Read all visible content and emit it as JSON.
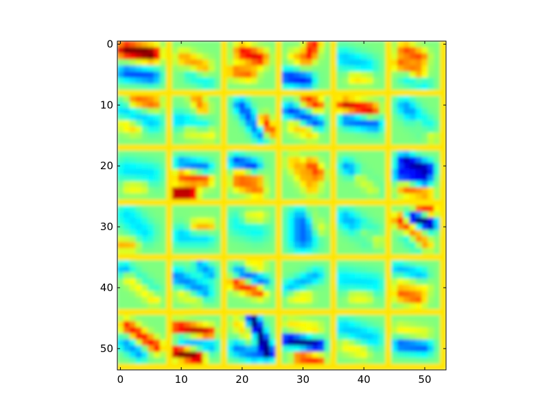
{
  "chart_data": {
    "type": "heatmap",
    "title": "",
    "xlabel": "",
    "ylabel": "",
    "xlim": [
      -0.5,
      53.5
    ],
    "ylim": [
      53.5,
      -0.5
    ],
    "origin": "upper",
    "grid": false,
    "colormap": "jet",
    "color_range": [
      -1,
      1
    ],
    "x_ticks": [
      0,
      10,
      20,
      30,
      40,
      50
    ],
    "y_ticks": [
      0,
      10,
      20,
      30,
      40,
      50
    ],
    "x_tick_labels": [
      "0",
      "10",
      "20",
      "30",
      "40",
      "50"
    ],
    "y_tick_labels": [
      "0",
      "10",
      "20",
      "30",
      "40",
      "50"
    ],
    "tiles": {
      "rows": 6,
      "cols": 6,
      "tile_size": 8,
      "padding": 1,
      "padding_value": 0.3,
      "base_value": 0.0
    },
    "features": [
      {
        "r": 0,
        "c": 0,
        "cx": 3.5,
        "cy": 1.8,
        "len": 4.5,
        "ang": -8,
        "sig": 1.0,
        "amp": 1.1
      },
      {
        "r": 0,
        "c": 0,
        "cx": 3.5,
        "cy": 5.5,
        "len": 4.5,
        "ang": -8,
        "sig": 1.0,
        "amp": -0.6
      },
      {
        "r": 0,
        "c": 1,
        "cx": 3.5,
        "cy": 3.5,
        "len": 3.5,
        "ang": -25,
        "sig": 1.0,
        "amp": 0.45
      },
      {
        "r": 0,
        "c": 1,
        "cx": 4.5,
        "cy": 6.2,
        "len": 3.0,
        "ang": -25,
        "sig": 0.9,
        "amp": -0.25
      },
      {
        "r": 0,
        "c": 2,
        "cx": 4.0,
        "cy": 2.3,
        "len": 3.0,
        "ang": -20,
        "sig": 1.0,
        "amp": 0.8
      },
      {
        "r": 0,
        "c": 2,
        "cx": 2.5,
        "cy": 5.2,
        "len": 2.5,
        "ang": -10,
        "sig": 0.9,
        "amp": 0.55
      },
      {
        "r": 0,
        "c": 3,
        "cx": 5.0,
        "cy": 1.0,
        "len": 2.0,
        "ang": 70,
        "sig": 0.9,
        "amp": 0.75
      },
      {
        "r": 0,
        "c": 3,
        "cx": 2.5,
        "cy": 6.2,
        "len": 3.0,
        "ang": -10,
        "sig": 1.0,
        "amp": -0.7
      },
      {
        "r": 0,
        "c": 3,
        "cx": 3.0,
        "cy": 3.0,
        "len": 2.0,
        "ang": -30,
        "sig": 0.8,
        "amp": 0.35
      },
      {
        "r": 0,
        "c": 4,
        "cx": 3.0,
        "cy": 3.5,
        "len": 4.0,
        "ang": -20,
        "sig": 1.3,
        "amp": -0.35
      },
      {
        "r": 0,
        "c": 4,
        "cx": 4.0,
        "cy": 6.0,
        "len": 2.0,
        "ang": 0,
        "sig": 0.8,
        "amp": 0.4
      },
      {
        "r": 0,
        "c": 5,
        "cx": 3.5,
        "cy": 2.0,
        "len": 3.0,
        "ang": -25,
        "sig": 0.9,
        "amp": 0.6
      },
      {
        "r": 0,
        "c": 5,
        "cx": 3.0,
        "cy": 4.5,
        "len": 3.5,
        "ang": -25,
        "sig": 0.9,
        "amp": 0.55
      },
      {
        "r": 0,
        "c": 5,
        "cx": 4.0,
        "cy": 6.5,
        "len": 3.0,
        "ang": -20,
        "sig": 0.9,
        "amp": -0.3
      },
      {
        "r": 1,
        "c": 0,
        "cx": 4.5,
        "cy": 1.0,
        "len": 3.0,
        "ang": -10,
        "sig": 0.9,
        "amp": 0.6
      },
      {
        "r": 1,
        "c": 0,
        "cx": 3.5,
        "cy": 3.5,
        "len": 5.0,
        "ang": -20,
        "sig": 1.2,
        "amp": -0.35
      },
      {
        "r": 1,
        "c": 0,
        "cx": 2.0,
        "cy": 5.0,
        "len": 2.0,
        "ang": -20,
        "sig": 0.8,
        "amp": 0.4
      },
      {
        "r": 1,
        "c": 1,
        "cx": 4.5,
        "cy": 1.2,
        "len": 2.0,
        "ang": -60,
        "sig": 0.8,
        "amp": 0.5
      },
      {
        "r": 1,
        "c": 1,
        "cx": 3.0,
        "cy": 4.5,
        "len": 4.0,
        "ang": -15,
        "sig": 1.1,
        "amp": -0.35
      },
      {
        "r": 1,
        "c": 1,
        "cx": 4.5,
        "cy": 6.0,
        "len": 3.0,
        "ang": -10,
        "sig": 0.9,
        "amp": 0.35
      },
      {
        "r": 1,
        "c": 2,
        "cx": 4.0,
        "cy": 4.0,
        "len": 6.0,
        "ang": -55,
        "sig": 0.9,
        "amp": -0.6
      },
      {
        "r": 1,
        "c": 2,
        "cx": 6.5,
        "cy": 5.0,
        "len": 2.0,
        "ang": -60,
        "sig": 0.8,
        "amp": 0.8
      },
      {
        "r": 1,
        "c": 3,
        "cx": 3.5,
        "cy": 3.5,
        "len": 5.0,
        "ang": -25,
        "sig": 0.9,
        "amp": -0.65
      },
      {
        "r": 1,
        "c": 3,
        "cx": 5.0,
        "cy": 1.0,
        "len": 2.0,
        "ang": -30,
        "sig": 0.8,
        "amp": 0.7
      },
      {
        "r": 1,
        "c": 3,
        "cx": 3.5,
        "cy": 5.5,
        "len": 3.0,
        "ang": -25,
        "sig": 0.9,
        "amp": 0.4
      },
      {
        "r": 1,
        "c": 4,
        "cx": 3.5,
        "cy": 2.0,
        "len": 4.5,
        "ang": -10,
        "sig": 0.9,
        "amp": 0.9
      },
      {
        "r": 1,
        "c": 4,
        "cx": 4.0,
        "cy": 4.2,
        "len": 4.5,
        "ang": -10,
        "sig": 1.0,
        "amp": -0.6
      },
      {
        "r": 1,
        "c": 5,
        "cx": 4.0,
        "cy": 3.5,
        "len": 5.0,
        "ang": -45,
        "sig": 1.1,
        "amp": -0.45
      },
      {
        "r": 1,
        "c": 5,
        "cx": 5.5,
        "cy": 5.5,
        "len": 3.0,
        "ang": -45,
        "sig": 0.8,
        "amp": 0.35
      },
      {
        "r": 2,
        "c": 0,
        "cx": 3.5,
        "cy": 3.5,
        "len": 4.0,
        "ang": -10,
        "sig": 1.4,
        "amp": -0.3
      },
      {
        "r": 2,
        "c": 0,
        "cx": 3.0,
        "cy": 6.0,
        "len": 2.0,
        "ang": 0,
        "sig": 0.8,
        "amp": 0.3
      },
      {
        "r": 2,
        "c": 1,
        "cx": 3.5,
        "cy": 2.6,
        "len": 4.0,
        "ang": -10,
        "sig": 0.9,
        "amp": -0.6
      },
      {
        "r": 2,
        "c": 1,
        "cx": 3.5,
        "cy": 4.3,
        "len": 4.0,
        "ang": -10,
        "sig": 0.9,
        "amp": 0.7
      },
      {
        "r": 2,
        "c": 1,
        "cx": 1.8,
        "cy": 7.0,
        "len": 2.5,
        "ang": 0,
        "sig": 0.8,
        "amp": 1.05
      },
      {
        "r": 2,
        "c": 2,
        "cx": 3.0,
        "cy": 2.3,
        "len": 3.0,
        "ang": -15,
        "sig": 0.9,
        "amp": -0.7
      },
      {
        "r": 2,
        "c": 2,
        "cx": 3.5,
        "cy": 4.0,
        "len": 3.0,
        "ang": -15,
        "sig": 0.8,
        "amp": 0.5
      },
      {
        "r": 2,
        "c": 2,
        "cx": 3.5,
        "cy": 6.0,
        "len": 3.5,
        "ang": -20,
        "sig": 0.9,
        "amp": 0.5
      },
      {
        "r": 2,
        "c": 3,
        "cx": 3.5,
        "cy": 4.0,
        "len": 5.0,
        "ang": -55,
        "sig": 1.0,
        "amp": 0.4
      },
      {
        "r": 2,
        "c": 3,
        "cx": 5.5,
        "cy": 3.0,
        "len": 2.0,
        "ang": -55,
        "sig": 0.8,
        "amp": 0.6
      },
      {
        "r": 2,
        "c": 4,
        "cx": 4.0,
        "cy": 4.5,
        "len": 6.0,
        "ang": -40,
        "sig": 0.9,
        "amp": -0.45
      },
      {
        "r": 2,
        "c": 4,
        "cx": 5.0,
        "cy": 5.5,
        "len": 3.0,
        "ang": -40,
        "sig": 0.8,
        "amp": 0.6
      },
      {
        "r": 2,
        "c": 5,
        "cx": 4.0,
        "cy": 2.3,
        "len": 4.0,
        "ang": -20,
        "sig": 0.9,
        "amp": -0.9
      },
      {
        "r": 2,
        "c": 5,
        "cx": 3.5,
        "cy": 4.5,
        "len": 4.0,
        "ang": -15,
        "sig": 0.9,
        "amp": -0.75
      },
      {
        "r": 2,
        "c": 5,
        "cx": 4.0,
        "cy": 6.5,
        "len": 3.5,
        "ang": -10,
        "sig": 0.9,
        "amp": 0.6
      },
      {
        "r": 3,
        "c": 0,
        "cx": 3.0,
        "cy": 3.0,
        "len": 4.0,
        "ang": -45,
        "sig": 1.4,
        "amp": -0.3
      },
      {
        "r": 3,
        "c": 0,
        "cx": 1.5,
        "cy": 6.5,
        "len": 2.0,
        "ang": 0,
        "sig": 0.8,
        "amp": 0.4
      },
      {
        "r": 3,
        "c": 1,
        "cx": 3.5,
        "cy": 5.0,
        "len": 4.0,
        "ang": 0,
        "sig": 1.2,
        "amp": -0.35
      },
      {
        "r": 3,
        "c": 1,
        "cx": 5.0,
        "cy": 3.5,
        "len": 2.0,
        "ang": 0,
        "sig": 0.8,
        "amp": 0.55
      },
      {
        "r": 3,
        "c": 2,
        "cx": 3.5,
        "cy": 3.5,
        "len": 3.0,
        "ang": -20,
        "sig": 1.5,
        "amp": -0.25
      },
      {
        "r": 3,
        "c": 2,
        "cx": 4.5,
        "cy": 2.0,
        "len": 2.0,
        "ang": 0,
        "sig": 0.8,
        "amp": 0.35
      },
      {
        "r": 3,
        "c": 3,
        "cx": 3.5,
        "cy": 4.0,
        "len": 3.0,
        "ang": 90,
        "sig": 1.6,
        "amp": -0.55
      },
      {
        "r": 3,
        "c": 3,
        "cx": 5.5,
        "cy": 2.5,
        "len": 3.0,
        "ang": -60,
        "sig": 0.8,
        "amp": 0.3
      },
      {
        "r": 3,
        "c": 4,
        "cx": 3.5,
        "cy": 3.5,
        "len": 5.0,
        "ang": -35,
        "sig": 1.2,
        "amp": -0.4
      },
      {
        "r": 3,
        "c": 4,
        "cx": 5.5,
        "cy": 5.0,
        "len": 2.5,
        "ang": -30,
        "sig": 0.8,
        "amp": 0.4
      },
      {
        "r": 3,
        "c": 5,
        "cx": 5.0,
        "cy": 2.5,
        "len": 3.0,
        "ang": -20,
        "sig": 0.8,
        "amp": -1.05
      },
      {
        "r": 3,
        "c": 5,
        "cx": 3.5,
        "cy": 4.5,
        "len": 6.0,
        "ang": -45,
        "sig": 0.8,
        "amp": 0.75
      },
      {
        "r": 3,
        "c": 5,
        "cx": 5.5,
        "cy": 0.5,
        "len": 2.0,
        "ang": -20,
        "sig": 0.8,
        "amp": 0.7
      },
      {
        "r": 3,
        "c": 5,
        "cx": 4.0,
        "cy": 6.0,
        "len": 3.0,
        "ang": -40,
        "sig": 0.9,
        "amp": -0.4
      },
      {
        "r": 4,
        "c": 0,
        "cx": 3.5,
        "cy": 3.5,
        "len": 6.0,
        "ang": -40,
        "sig": 0.9,
        "amp": -0.5
      },
      {
        "r": 4,
        "c": 0,
        "cx": 4.0,
        "cy": 4.5,
        "len": 5.0,
        "ang": -40,
        "sig": 0.8,
        "amp": 0.65
      },
      {
        "r": 4,
        "c": 1,
        "cx": 3.0,
        "cy": 4.0,
        "len": 5.0,
        "ang": -30,
        "sig": 1.1,
        "amp": -0.5
      },
      {
        "r": 4,
        "c": 1,
        "cx": 5.5,
        "cy": 1.5,
        "len": 2.0,
        "ang": -40,
        "sig": 0.8,
        "amp": -0.45
      },
      {
        "r": 4,
        "c": 1,
        "cx": 3.0,
        "cy": 6.0,
        "len": 3.0,
        "ang": -20,
        "sig": 0.8,
        "amp": 0.3
      },
      {
        "r": 4,
        "c": 2,
        "cx": 4.0,
        "cy": 3.0,
        "len": 4.0,
        "ang": -25,
        "sig": 0.9,
        "amp": -0.75
      },
      {
        "r": 4,
        "c": 2,
        "cx": 3.5,
        "cy": 4.3,
        "len": 4.0,
        "ang": -20,
        "sig": 0.9,
        "amp": 0.85
      },
      {
        "r": 4,
        "c": 2,
        "cx": 4.5,
        "cy": 1.0,
        "len": 2.0,
        "ang": 0,
        "sig": 0.7,
        "amp": 0.35
      },
      {
        "r": 4,
        "c": 3,
        "cx": 3.5,
        "cy": 3.5,
        "len": 5.0,
        "ang": 25,
        "sig": 0.9,
        "amp": -0.4
      },
      {
        "r": 4,
        "c": 3,
        "cx": 3.0,
        "cy": 6.0,
        "len": 2.0,
        "ang": 0,
        "sig": 0.8,
        "amp": 0.3
      },
      {
        "r": 4,
        "c": 4,
        "cx": 3.5,
        "cy": 3.5,
        "len": 5.0,
        "ang": -10,
        "sig": 1.4,
        "amp": -0.3
      },
      {
        "r": 4,
        "c": 4,
        "cx": 4.0,
        "cy": 6.0,
        "len": 2.0,
        "ang": 0,
        "sig": 0.8,
        "amp": 0.3
      },
      {
        "r": 4,
        "c": 5,
        "cx": 3.0,
        "cy": 2.0,
        "len": 4.0,
        "ang": -15,
        "sig": 0.9,
        "amp": -0.4
      },
      {
        "r": 4,
        "c": 5,
        "cx": 3.0,
        "cy": 6.0,
        "len": 3.0,
        "ang": -15,
        "sig": 0.9,
        "amp": 0.55
      },
      {
        "r": 4,
        "c": 5,
        "cx": 3.5,
        "cy": 4.0,
        "len": 4.0,
        "ang": -15,
        "sig": 0.9,
        "amp": 0.25
      },
      {
        "r": 5,
        "c": 0,
        "cx": 4.0,
        "cy": 3.5,
        "len": 6.0,
        "ang": -35,
        "sig": 0.8,
        "amp": 0.75
      },
      {
        "r": 5,
        "c": 0,
        "cx": 2.5,
        "cy": 5.5,
        "len": 3.0,
        "ang": -35,
        "sig": 0.9,
        "amp": -0.45
      },
      {
        "r": 5,
        "c": 1,
        "cx": 3.5,
        "cy": 2.5,
        "len": 5.0,
        "ang": -10,
        "sig": 0.8,
        "amp": 0.95
      },
      {
        "r": 5,
        "c": 1,
        "cx": 2.5,
        "cy": 6.5,
        "len": 3.5,
        "ang": -15,
        "sig": 0.8,
        "amp": 1.1
      },
      {
        "r": 5,
        "c": 1,
        "cx": 4.0,
        "cy": 4.5,
        "len": 4.5,
        "ang": -10,
        "sig": 1.0,
        "amp": -0.45
      },
      {
        "r": 5,
        "c": 2,
        "cx": 5.5,
        "cy": 3.5,
        "len": 6.0,
        "ang": -65,
        "sig": 0.8,
        "amp": -1.1
      },
      {
        "r": 5,
        "c": 2,
        "cx": 3.0,
        "cy": 6.0,
        "len": 3.0,
        "ang": -20,
        "sig": 1.0,
        "amp": -0.5
      },
      {
        "r": 5,
        "c": 2,
        "cx": 3.0,
        "cy": 2.5,
        "len": 3.0,
        "ang": -45,
        "sig": 0.9,
        "amp": 0.35
      },
      {
        "r": 5,
        "c": 3,
        "cx": 3.5,
        "cy": 4.5,
        "len": 5.0,
        "ang": -10,
        "sig": 0.8,
        "amp": -1.0
      },
      {
        "r": 5,
        "c": 3,
        "cx": 4.5,
        "cy": 7.2,
        "len": 3.0,
        "ang": -10,
        "sig": 0.8,
        "amp": 0.7
      },
      {
        "r": 5,
        "c": 3,
        "cx": 3.5,
        "cy": 2.0,
        "len": 4.0,
        "ang": -10,
        "sig": 0.9,
        "amp": 0.3
      },
      {
        "r": 5,
        "c": 4,
        "cx": 3.5,
        "cy": 3.0,
        "len": 5.0,
        "ang": -20,
        "sig": 1.3,
        "amp": -0.35
      },
      {
        "r": 5,
        "c": 4,
        "cx": 3.0,
        "cy": 5.5,
        "len": 3.0,
        "ang": -20,
        "sig": 0.9,
        "amp": 0.3
      },
      {
        "r": 5,
        "c": 5,
        "cx": 3.5,
        "cy": 5.0,
        "len": 4.0,
        "ang": -5,
        "sig": 1.0,
        "amp": -0.6
      },
      {
        "r": 5,
        "c": 5,
        "cx": 3.5,
        "cy": 3.0,
        "len": 4.0,
        "ang": -10,
        "sig": 0.9,
        "amp": 0.3
      }
    ]
  }
}
